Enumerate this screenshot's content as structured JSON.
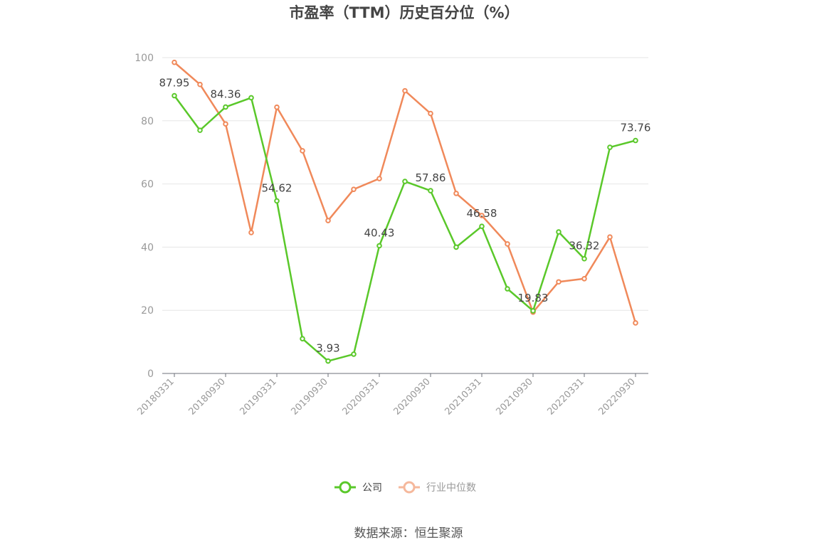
{
  "chart_data": {
    "type": "line",
    "title": "市盈率（TTM）历史百分位（%）",
    "ylim": [
      0,
      100
    ],
    "yticks": [
      0,
      20,
      40,
      60,
      80,
      100
    ],
    "x": [
      "20180331",
      "20180630",
      "20180930",
      "20181231",
      "20190331",
      "20190630",
      "20190930",
      "20191231",
      "20200331",
      "20200630",
      "20200930",
      "20201231",
      "20210331",
      "20210630",
      "20210930",
      "20211231",
      "20220331",
      "20220630",
      "20220930"
    ],
    "xtick_labels": [
      "20180331",
      "20180930",
      "20190331",
      "20190930",
      "20200331",
      "20200930",
      "20210331",
      "20210930",
      "20220331",
      "20220930"
    ],
    "grid": "horizontal",
    "legend_position": "bottom-center",
    "series": [
      {
        "name": "公司",
        "color": "#5ac82a",
        "values": [
          87.95,
          77.0,
          84.36,
          87.3,
          54.62,
          11.0,
          3.93,
          6.1,
          40.43,
          60.8,
          57.86,
          40.0,
          46.58,
          26.8,
          19.83,
          44.8,
          36.32,
          71.6,
          73.76
        ],
        "labels": {
          "0": "87.95",
          "2": "84.36",
          "4": "54.62",
          "6": "3.93",
          "8": "40.43",
          "10": "57.86",
          "12": "46.58",
          "14": "19.83",
          "16": "36.32",
          "18": "73.76"
        }
      },
      {
        "name": "行业中位数",
        "color": "#f0895a",
        "values": [
          98.5,
          91.5,
          79.0,
          44.6,
          84.3,
          70.5,
          48.4,
          58.3,
          61.7,
          89.5,
          82.3,
          57.0,
          50.0,
          41.0,
          19.4,
          29.0,
          30.0,
          43.2,
          16.0
        ]
      }
    ]
  },
  "legend": {
    "company": "公司",
    "industry": "行业中位数",
    "industry_text_color": "#999999",
    "company_text_color": "#444444"
  },
  "source": "数据来源：恒生聚源"
}
